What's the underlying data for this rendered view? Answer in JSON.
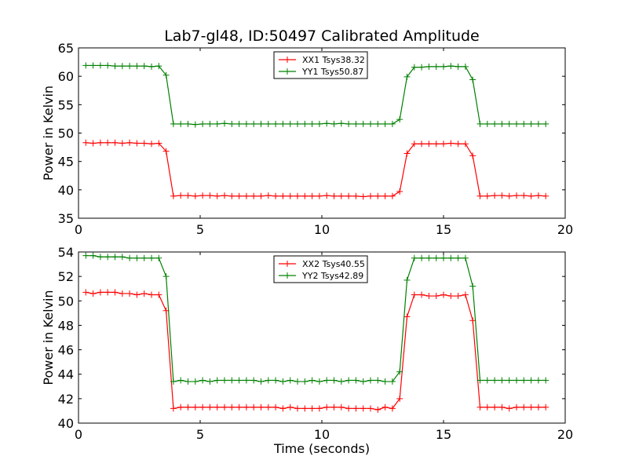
{
  "figure": {
    "title": "Lab7-gl48, ID:50497 Calibrated Amplitude"
  },
  "chart_data": [
    {
      "type": "line",
      "title": "Lab7-gl48, ID:50497 Calibrated Amplitude",
      "xlabel": "",
      "ylabel": "Power in Kelvin",
      "xlim": [
        0,
        20
      ],
      "ylim": [
        35,
        65
      ],
      "xticks": [
        0,
        5,
        10,
        15,
        20
      ],
      "yticks": [
        35,
        40,
        45,
        50,
        55,
        60,
        65
      ],
      "grid": false,
      "legend_position": "top-center",
      "x": [
        0.3,
        0.6,
        0.9,
        1.2,
        1.5,
        1.8,
        2.1,
        2.4,
        2.7,
        3.0,
        3.3,
        3.6,
        3.9,
        4.2,
        4.5,
        4.8,
        5.1,
        5.4,
        5.7,
        6.0,
        6.3,
        6.6,
        6.9,
        7.2,
        7.5,
        7.8,
        8.1,
        8.4,
        8.7,
        9.0,
        9.3,
        9.6,
        9.9,
        10.2,
        10.5,
        10.8,
        11.1,
        11.4,
        11.7,
        12.0,
        12.3,
        12.6,
        12.9,
        13.2,
        13.5,
        13.8,
        14.1,
        14.4,
        14.7,
        15.0,
        15.3,
        15.6,
        15.9,
        16.2,
        16.5,
        16.8,
        17.1,
        17.4,
        17.7,
        18.0,
        18.3,
        18.6,
        18.9,
        19.2
      ],
      "series": [
        {
          "name": "XX1 Tsys38.32",
          "color": "#ff0000",
          "values": [
            48.3,
            48.2,
            48.3,
            48.3,
            48.3,
            48.2,
            48.3,
            48.2,
            48.2,
            48.1,
            48.2,
            46.8,
            38.9,
            39.0,
            39.0,
            38.9,
            39.0,
            39.0,
            38.9,
            39.0,
            38.9,
            38.9,
            38.9,
            38.9,
            38.9,
            39.0,
            38.9,
            38.9,
            38.9,
            38.9,
            38.9,
            38.9,
            38.9,
            39.0,
            38.9,
            38.9,
            38.9,
            38.9,
            38.8,
            38.9,
            38.9,
            38.9,
            38.9,
            39.7,
            46.4,
            48.1,
            48.1,
            48.1,
            48.1,
            48.1,
            48.2,
            48.1,
            48.1,
            46.0,
            38.9,
            38.9,
            39.0,
            39.0,
            38.9,
            39.0,
            39.0,
            38.9,
            39.0,
            38.9
          ]
        },
        {
          "name": "YY1 Tsys50.87",
          "color": "#008000",
          "values": [
            61.9,
            61.9,
            61.9,
            61.9,
            61.8,
            61.8,
            61.8,
            61.8,
            61.8,
            61.7,
            61.8,
            60.2,
            51.6,
            51.6,
            51.6,
            51.5,
            51.6,
            51.6,
            51.6,
            51.7,
            51.6,
            51.6,
            51.6,
            51.6,
            51.6,
            51.6,
            51.6,
            51.6,
            51.6,
            51.6,
            51.6,
            51.6,
            51.6,
            51.7,
            51.6,
            51.7,
            51.6,
            51.6,
            51.6,
            51.6,
            51.6,
            51.6,
            51.6,
            52.4,
            59.9,
            61.6,
            61.6,
            61.7,
            61.7,
            61.7,
            61.8,
            61.7,
            61.7,
            59.4,
            51.6,
            51.6,
            51.6,
            51.6,
            51.6,
            51.6,
            51.6,
            51.6,
            51.6,
            51.6
          ]
        }
      ]
    },
    {
      "type": "line",
      "title": "",
      "xlabel": "Time (seconds)",
      "ylabel": "Power in Kelvin",
      "xlim": [
        0,
        20
      ],
      "ylim": [
        40,
        54
      ],
      "xticks": [
        0,
        5,
        10,
        15,
        20
      ],
      "yticks": [
        40,
        42,
        44,
        46,
        48,
        50,
        52,
        54
      ],
      "grid": false,
      "legend_position": "top-center",
      "x": [
        0.3,
        0.6,
        0.9,
        1.2,
        1.5,
        1.8,
        2.1,
        2.4,
        2.7,
        3.0,
        3.3,
        3.6,
        3.9,
        4.2,
        4.5,
        4.8,
        5.1,
        5.4,
        5.7,
        6.0,
        6.3,
        6.6,
        6.9,
        7.2,
        7.5,
        7.8,
        8.1,
        8.4,
        8.7,
        9.0,
        9.3,
        9.6,
        9.9,
        10.2,
        10.5,
        10.8,
        11.1,
        11.4,
        11.7,
        12.0,
        12.3,
        12.6,
        12.9,
        13.2,
        13.5,
        13.8,
        14.1,
        14.4,
        14.7,
        15.0,
        15.3,
        15.6,
        15.9,
        16.2,
        16.5,
        16.8,
        17.1,
        17.4,
        17.7,
        18.0,
        18.3,
        18.6,
        18.9,
        19.2
      ],
      "series": [
        {
          "name": "XX2 Tsys40.55",
          "color": "#ff0000",
          "values": [
            50.7,
            50.6,
            50.7,
            50.7,
            50.7,
            50.6,
            50.6,
            50.5,
            50.6,
            50.5,
            50.5,
            49.2,
            41.2,
            41.3,
            41.3,
            41.3,
            41.3,
            41.3,
            41.3,
            41.3,
            41.3,
            41.3,
            41.3,
            41.3,
            41.3,
            41.3,
            41.3,
            41.2,
            41.3,
            41.2,
            41.2,
            41.2,
            41.2,
            41.3,
            41.3,
            41.3,
            41.2,
            41.2,
            41.2,
            41.2,
            41.1,
            41.3,
            41.2,
            42.0,
            48.7,
            50.5,
            50.5,
            50.4,
            50.4,
            50.5,
            50.4,
            50.4,
            50.5,
            48.4,
            41.3,
            41.3,
            41.3,
            41.3,
            41.2,
            41.3,
            41.3,
            41.3,
            41.3,
            41.3
          ]
        },
        {
          "name": "YY2 Tsys42.89",
          "color": "#008000",
          "values": [
            53.7,
            53.7,
            53.6,
            53.6,
            53.6,
            53.6,
            53.5,
            53.5,
            53.5,
            53.5,
            53.5,
            52.0,
            43.4,
            43.5,
            43.4,
            43.4,
            43.5,
            43.4,
            43.5,
            43.5,
            43.5,
            43.5,
            43.5,
            43.5,
            43.4,
            43.5,
            43.5,
            43.4,
            43.5,
            43.4,
            43.4,
            43.5,
            43.4,
            43.5,
            43.5,
            43.4,
            43.5,
            43.5,
            43.4,
            43.5,
            43.5,
            43.4,
            43.4,
            44.2,
            51.7,
            53.5,
            53.5,
            53.5,
            53.5,
            53.5,
            53.5,
            53.5,
            53.5,
            51.2,
            43.5,
            43.5,
            43.5,
            43.5,
            43.5,
            43.5,
            43.5,
            43.5,
            43.5,
            43.5
          ]
        }
      ]
    }
  ]
}
